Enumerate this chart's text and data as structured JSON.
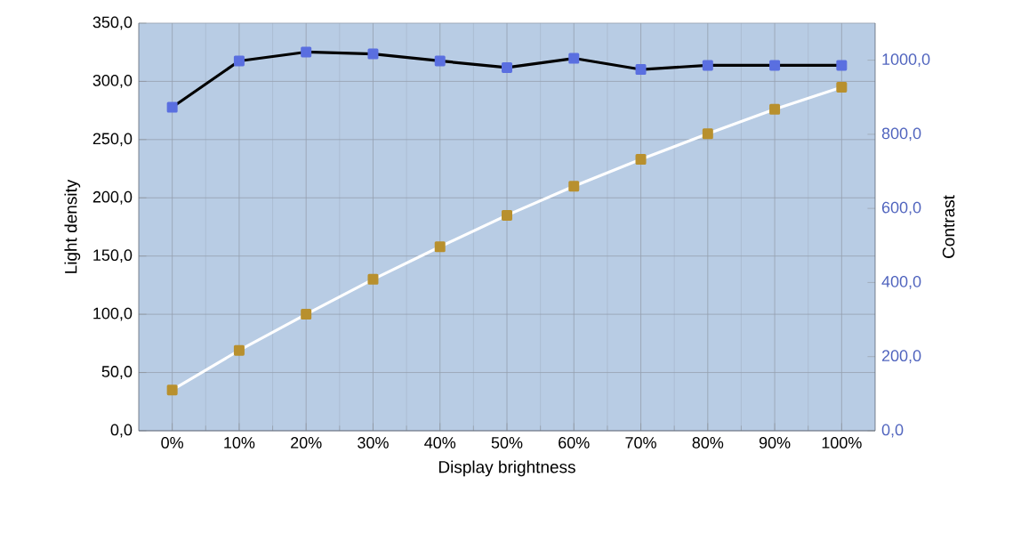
{
  "chart_data": {
    "type": "line",
    "xlabel": "Display brightness",
    "ylabel": "Light density",
    "y2label": "Contrast",
    "categories": [
      "0%",
      "10%",
      "20%",
      "30%",
      "40%",
      "50%",
      "60%",
      "70%",
      "80%",
      "90%",
      "100%"
    ],
    "series": [
      {
        "color": "#b8902e",
        "values": [
          35,
          69,
          100,
          130,
          158,
          185,
          210,
          233,
          255,
          276,
          295
        ]
      },
      {
        "color": "#5a6fe0",
        "axis": "y2",
        "values": [
          873,
          998,
          1022,
          1017,
          998,
          980,
          1005,
          975,
          986,
          986,
          986
        ]
      }
    ],
    "ylim": [
      0,
      350
    ],
    "yticks": [
      {
        "value": 0,
        "label": "0,0"
      },
      {
        "value": 50,
        "label": "50,0"
      },
      {
        "value": 100,
        "label": "100,0"
      },
      {
        "value": 150,
        "label": "150,0"
      },
      {
        "value": 200,
        "label": "200,0"
      },
      {
        "value": 250,
        "label": "250,0"
      },
      {
        "value": 300,
        "label": "300,0"
      },
      {
        "value": 350,
        "label": "350,0"
      }
    ],
    "y2lim": [
      0,
      1100
    ],
    "y2ticks": [
      {
        "value": 0,
        "label": "0,0"
      },
      {
        "value": 200,
        "label": "200,0"
      },
      {
        "value": 400,
        "label": "400,0"
      },
      {
        "value": 600,
        "label": "600,0"
      },
      {
        "value": 800,
        "label": "800,0"
      },
      {
        "value": 1000,
        "label": "1000,0"
      }
    ],
    "grid": true,
    "marker": "square",
    "line_style": "solid"
  }
}
